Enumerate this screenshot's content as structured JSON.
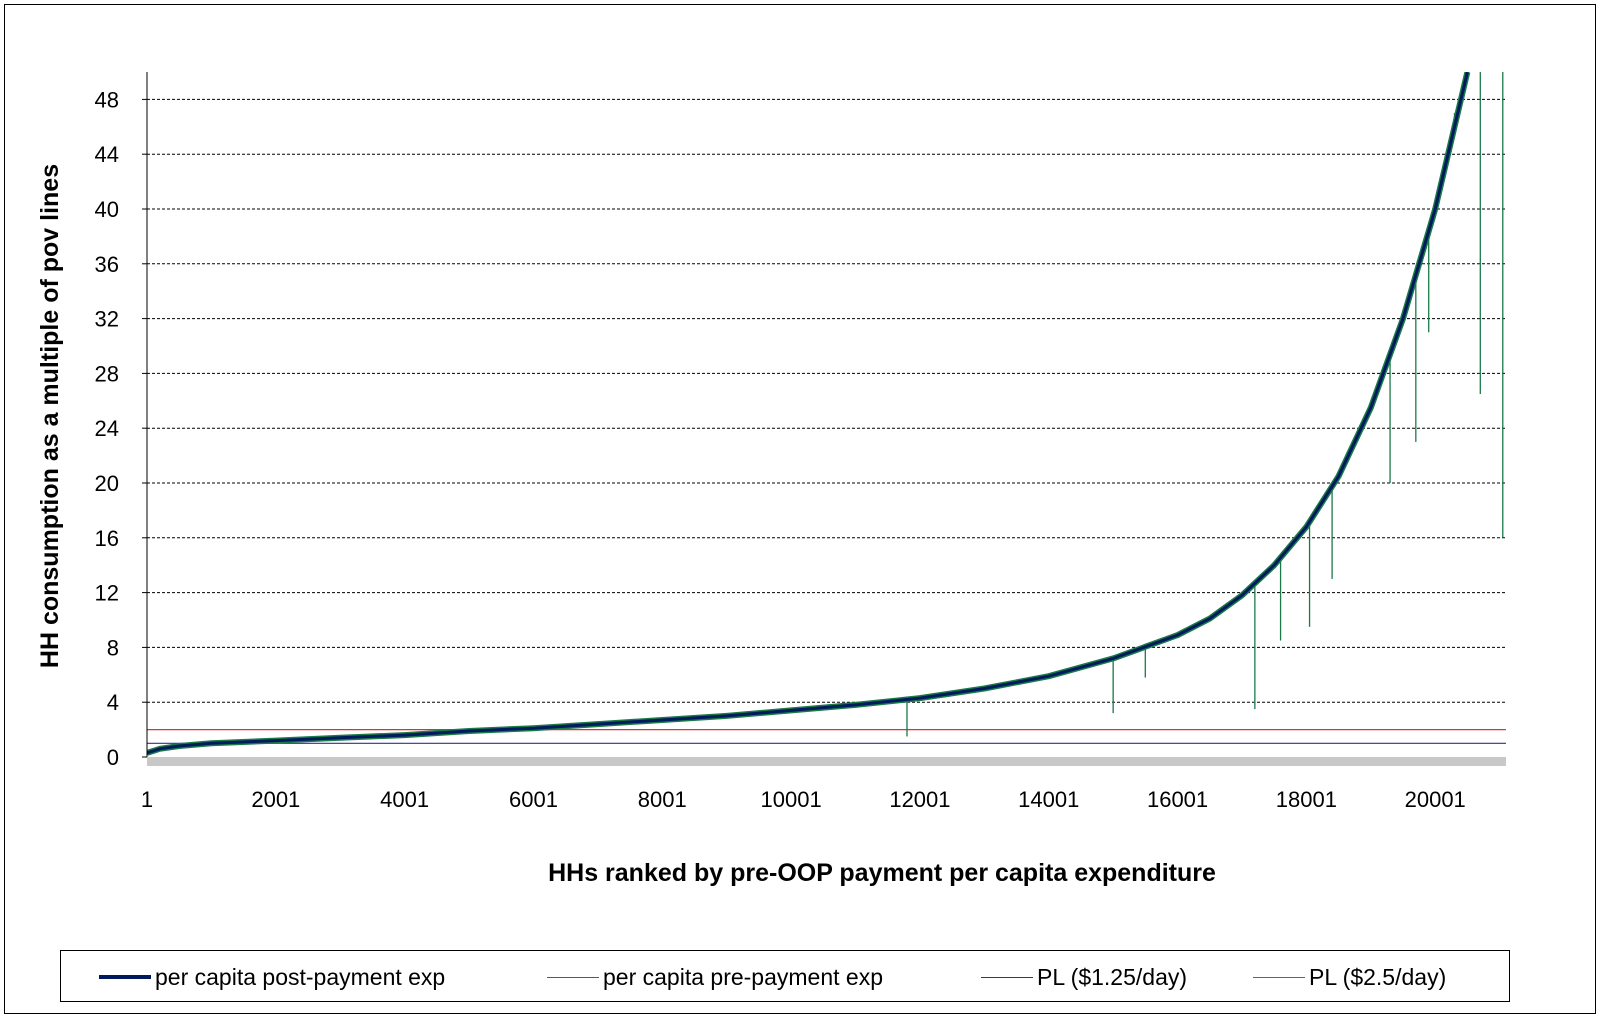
{
  "chart_data": {
    "type": "line",
    "title": "",
    "xlabel": "HHs ranked by pre-OOP payment per capita expenditure",
    "ylabel": "HH consumption as a multiple of pov lines",
    "xlim": [
      1,
      21100
    ],
    "ylim": [
      0,
      50
    ],
    "y_ticks": [
      "0",
      "4",
      "8",
      "12",
      "16",
      "20",
      "24",
      "28",
      "32",
      "36",
      "40",
      "44",
      "48"
    ],
    "x_ticks": [
      "1",
      "2001",
      "4001",
      "6001",
      "8001",
      "10001",
      "12001",
      "14001",
      "16001",
      "18001",
      "20001"
    ],
    "grid": "horizontal dashed",
    "legend_position": "bottom",
    "series": [
      {
        "name": "per capita post-payment exp",
        "color": "#001a5e",
        "x": [
          1,
          200,
          500,
          1000,
          2001,
          3001,
          4001,
          5001,
          6001,
          7001,
          8001,
          9001,
          10001,
          11001,
          12001,
          13001,
          14001,
          15001,
          16001,
          16501,
          17001,
          17501,
          18001,
          18501,
          19001,
          19501,
          20001,
          20301,
          20501
        ],
        "values": [
          0.3,
          0.6,
          0.8,
          1.0,
          1.2,
          1.4,
          1.6,
          1.9,
          2.1,
          2.4,
          2.7,
          3.0,
          3.4,
          3.8,
          4.3,
          5.0,
          5.9,
          7.2,
          8.9,
          10.1,
          11.8,
          14.0,
          16.8,
          20.5,
          25.5,
          32.0,
          40.0,
          46.0,
          50.0
        ]
      },
      {
        "name": "per capita pre-payment exp",
        "color": "#1a7a48",
        "spikes": [
          {
            "x": 11800,
            "y": 1.5
          },
          {
            "x": 15001,
            "y": 3.2
          },
          {
            "x": 15500,
            "y": 5.8
          },
          {
            "x": 17201,
            "y": 3.5
          },
          {
            "x": 17600,
            "y": 8.5
          },
          {
            "x": 18050,
            "y": 9.5
          },
          {
            "x": 18400,
            "y": 13.0
          },
          {
            "x": 19300,
            "y": 20.0
          },
          {
            "x": 19700,
            "y": 23.0
          },
          {
            "x": 19900,
            "y": 31.0
          },
          {
            "x": 20300,
            "y": 47.0
          },
          {
            "x": 20701,
            "y": 26.5
          },
          {
            "x": 21050,
            "y": 16.0
          }
        ]
      },
      {
        "name": "PL ($1.25/day)",
        "color": "#303090",
        "values": [
          1.0
        ]
      },
      {
        "name": "PL ($2.5/day)",
        "color": "#e03030",
        "values": [
          2.0
        ]
      }
    ]
  }
}
